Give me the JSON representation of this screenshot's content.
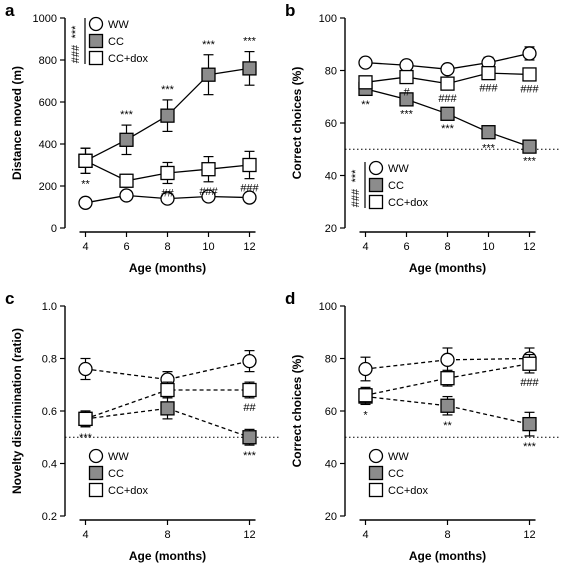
{
  "colors": {
    "ww": "#ffffff",
    "cc": "#8c8c8c",
    "ccdox": "#ffffff",
    "stroke": "#000000"
  },
  "chart_data": [
    {
      "panel": "a",
      "type": "line",
      "xlabel": "Age (months)",
      "ylabel": "Distance moved (m)",
      "xlim": [
        3,
        13
      ],
      "ylim": [
        0,
        1000
      ],
      "xticks": [
        4,
        6,
        8,
        10,
        12
      ],
      "yticks": [
        0,
        200,
        400,
        600,
        800,
        1000
      ],
      "dashed": false,
      "legend_placement": "top-left",
      "legend_marks": [
        "***",
        "###"
      ],
      "series": [
        {
          "name": "WW",
          "marker": "circle",
          "x": [
            4,
            6,
            8,
            10,
            12
          ],
          "y": [
            120,
            155,
            140,
            150,
            145
          ],
          "err": [
            5,
            10,
            8,
            8,
            8
          ],
          "sig": [
            "",
            "",
            "",
            "",
            ""
          ]
        },
        {
          "name": "CC",
          "marker": "square-grey",
          "x": [
            4,
            6,
            8,
            10,
            12
          ],
          "y": [
            320,
            420,
            535,
            730,
            760
          ],
          "err": [
            60,
            70,
            75,
            95,
            80
          ],
          "sig": [
            "**",
            "***",
            "***",
            "***",
            "***"
          ]
        },
        {
          "name": "CC+dox",
          "marker": "square-white",
          "x": [
            4,
            6,
            8,
            10,
            12
          ],
          "y": [
            320,
            225,
            262,
            280,
            300
          ],
          "err": [
            60,
            30,
            50,
            60,
            65
          ],
          "sig": [
            "",
            "",
            "##",
            "###",
            "###"
          ]
        }
      ]
    },
    {
      "panel": "b",
      "type": "line",
      "xlabel": "Age (months)",
      "ylabel": "Correct choices (%)",
      "xlim": [
        3,
        13
      ],
      "ylim": [
        20,
        100
      ],
      "xticks": [
        4,
        6,
        8,
        10,
        12
      ],
      "yticks": [
        20,
        40,
        60,
        80,
        100
      ],
      "chance": 50,
      "dashed": false,
      "legend_placement": "bottom-left",
      "legend_marks": [
        "***",
        "###"
      ],
      "series": [
        {
          "name": "WW",
          "marker": "circle",
          "x": [
            4,
            6,
            8,
            10,
            12
          ],
          "y": [
            83,
            82,
            80.5,
            83,
            86.5
          ],
          "err": [
            1.5,
            1.5,
            1.5,
            2,
            2.5
          ],
          "sig": [
            "",
            "",
            "",
            "",
            ""
          ]
        },
        {
          "name": "CC",
          "marker": "square-grey",
          "x": [
            4,
            6,
            8,
            10,
            12
          ],
          "y": [
            73,
            69,
            63.5,
            56.5,
            51
          ],
          "err": [
            2,
            1.5,
            1.5,
            2,
            1.5
          ],
          "sig": [
            "**",
            "***",
            "***",
            "***",
            "***"
          ]
        },
        {
          "name": "CC+dox",
          "marker": "square-white",
          "x": [
            4,
            6,
            8,
            10,
            12
          ],
          "y": [
            75.5,
            77.5,
            75,
            79,
            78.5
          ],
          "err": [
            2,
            2,
            2,
            2,
            2
          ],
          "sig": [
            "",
            "#",
            "###",
            "###",
            "###"
          ]
        }
      ]
    },
    {
      "panel": "c",
      "type": "line",
      "xlabel": "Age (months)",
      "ylabel": "Novelty discrimination (ratio)",
      "xlim": [
        3,
        13
      ],
      "ylim": [
        0.2,
        1.0
      ],
      "xticks": [
        4,
        8,
        12
      ],
      "yticks": [
        0.2,
        0.4,
        0.6,
        0.8,
        1.0
      ],
      "chance": 0.5,
      "dashed": true,
      "legend_placement": "bottom-left",
      "legend_marks": [],
      "series": [
        {
          "name": "WW",
          "marker": "circle",
          "x": [
            4,
            8,
            12
          ],
          "y": [
            0.76,
            0.72,
            0.79
          ],
          "err": [
            0.04,
            0.03,
            0.04
          ],
          "sig": [
            "",
            "",
            ""
          ]
        },
        {
          "name": "CC",
          "marker": "square-grey",
          "x": [
            4,
            8,
            12
          ],
          "y": [
            0.57,
            0.61,
            0.5
          ],
          "err": [
            0.03,
            0.04,
            0.03
          ],
          "sig": [
            "***",
            "",
            "***"
          ]
        },
        {
          "name": "CC+dox",
          "marker": "square-white",
          "x": [
            4,
            8,
            12
          ],
          "y": [
            0.57,
            0.68,
            0.68
          ],
          "err": [
            0.03,
            0.03,
            0.03
          ],
          "sig": [
            "",
            "",
            "##"
          ]
        }
      ]
    },
    {
      "panel": "d",
      "type": "line",
      "xlabel": "Age (months)",
      "ylabel": "Correct choices (%)",
      "xlim": [
        3,
        13
      ],
      "ylim": [
        20,
        100
      ],
      "xticks": [
        4,
        8,
        12
      ],
      "yticks": [
        20,
        40,
        60,
        80,
        100
      ],
      "chance": 50,
      "dashed": true,
      "legend_placement": "bottom-left",
      "legend_marks": [],
      "series": [
        {
          "name": "WW",
          "marker": "circle",
          "x": [
            4,
            8,
            12
          ],
          "y": [
            76,
            79.5,
            80
          ],
          "err": [
            4.5,
            4.5,
            4
          ],
          "sig": [
            "",
            "",
            ""
          ]
        },
        {
          "name": "CC",
          "marker": "square-grey",
          "x": [
            4,
            8,
            12
          ],
          "y": [
            65.5,
            62,
            55
          ],
          "err": [
            3,
            3.5,
            4.5
          ],
          "sig": [
            "*",
            "**",
            "***"
          ]
        },
        {
          "name": "CC+dox",
          "marker": "square-white",
          "x": [
            4,
            8,
            12
          ],
          "y": [
            66,
            72.5,
            78
          ],
          "err": [
            3,
            3,
            3.5
          ],
          "sig": [
            "",
            "",
            "###"
          ]
        }
      ]
    }
  ]
}
